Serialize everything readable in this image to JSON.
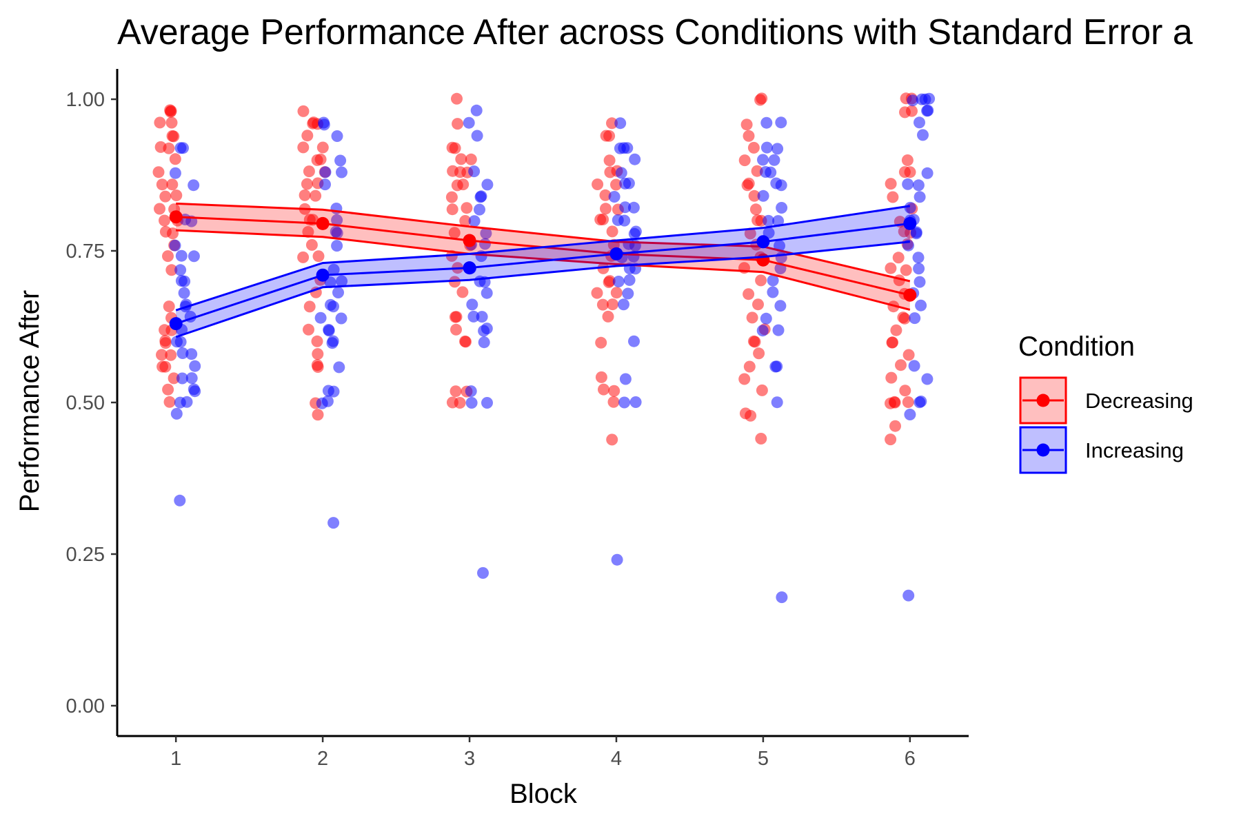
{
  "chart_data": {
    "type": "line",
    "title": "Average Performance After across Conditions with Standard Error a",
    "xlabel": "Block",
    "ylabel": "Performance After",
    "xlim": [
      0.6,
      6.4
    ],
    "ylim": [
      -0.05,
      1.05
    ],
    "x_ticks": [
      "1",
      "2",
      "3",
      "4",
      "5",
      "6"
    ],
    "y_ticks": [
      "0.00",
      "0.25",
      "0.50",
      "0.75",
      "1.00"
    ],
    "y_tick_values": [
      0,
      0.25,
      0.5,
      0.75,
      1.0
    ],
    "grid": false,
    "legend": {
      "title": "Condition",
      "position": "right"
    },
    "series": [
      {
        "name": "Decreasing",
        "color": "#FF0000",
        "fill": "#FFBFBF",
        "x": [
          1,
          2,
          3,
          4,
          5,
          6
        ],
        "mean": [
          0.806,
          0.795,
          0.767,
          0.745,
          0.735,
          0.677
        ],
        "se_low": [
          0.784,
          0.773,
          0.745,
          0.728,
          0.715,
          0.653
        ],
        "se_high": [
          0.828,
          0.818,
          0.79,
          0.765,
          0.757,
          0.7
        ],
        "jitter_points": [
          [
            1,
            [
              0.98,
              0.98,
              0.98,
              0.96,
              0.96,
              0.94,
              0.94,
              0.92,
              0.92,
              0.9,
              0.88,
              0.86,
              0.86,
              0.84,
              0.84,
              0.82,
              0.82,
              0.8,
              0.8,
              0.78,
              0.78,
              0.76,
              0.74,
              0.72,
              0.66,
              0.64,
              0.62,
              0.62,
              0.6,
              0.6,
              0.58,
              0.58,
              0.56,
              0.56,
              0.54,
              0.52,
              0.5
            ]
          ],
          [
            2,
            [
              0.98,
              0.96,
              0.96,
              0.96,
              0.94,
              0.92,
              0.92,
              0.9,
              0.9,
              0.88,
              0.88,
              0.86,
              0.86,
              0.84,
              0.84,
              0.82,
              0.8,
              0.8,
              0.78,
              0.76,
              0.74,
              0.74,
              0.7,
              0.68,
              0.66,
              0.62,
              0.6,
              0.58,
              0.56,
              0.56,
              0.5,
              0.48
            ]
          ],
          [
            3,
            [
              1.0,
              0.96,
              0.92,
              0.92,
              0.9,
              0.9,
              0.88,
              0.88,
              0.88,
              0.86,
              0.86,
              0.84,
              0.82,
              0.82,
              0.8,
              0.78,
              0.76,
              0.74,
              0.72,
              0.7,
              0.68,
              0.64,
              0.64,
              0.62,
              0.6,
              0.6,
              0.52,
              0.52,
              0.5,
              0.5
            ]
          ],
          [
            4,
            [
              0.96,
              0.94,
              0.94,
              0.9,
              0.88,
              0.88,
              0.86,
              0.86,
              0.84,
              0.82,
              0.82,
              0.8,
              0.8,
              0.78,
              0.76,
              0.74,
              0.72,
              0.7,
              0.7,
              0.68,
              0.68,
              0.66,
              0.66,
              0.64,
              0.6,
              0.54,
              0.52,
              0.52,
              0.5,
              0.44
            ]
          ],
          [
            5,
            [
              1.0,
              1.0,
              0.96,
              0.94,
              0.92,
              0.9,
              0.88,
              0.86,
              0.86,
              0.84,
              0.82,
              0.8,
              0.8,
              0.78,
              0.76,
              0.74,
              0.72,
              0.7,
              0.68,
              0.66,
              0.64,
              0.62,
              0.6,
              0.6,
              0.58,
              0.56,
              0.54,
              0.52,
              0.48,
              0.48,
              0.44
            ]
          ],
          [
            6,
            [
              1.0,
              1.0,
              0.98,
              0.98,
              0.9,
              0.88,
              0.88,
              0.86,
              0.84,
              0.82,
              0.8,
              0.78,
              0.78,
              0.76,
              0.74,
              0.72,
              0.72,
              0.7,
              0.68,
              0.66,
              0.64,
              0.64,
              0.62,
              0.6,
              0.6,
              0.58,
              0.56,
              0.54,
              0.52,
              0.5,
              0.5,
              0.5,
              0.5,
              0.46,
              0.44
            ]
          ]
        ]
      },
      {
        "name": "Increasing",
        "color": "#0000FF",
        "fill": "#BFBFFF",
        "x": [
          1,
          2,
          3,
          4,
          5,
          6
        ],
        "mean": [
          0.63,
          0.71,
          0.722,
          0.745,
          0.765,
          0.795
        ],
        "se_low": [
          0.608,
          0.69,
          0.702,
          0.725,
          0.74,
          0.765
        ],
        "se_high": [
          0.652,
          0.73,
          0.745,
          0.767,
          0.788,
          0.824
        ],
        "jitter_points": [
          [
            1,
            [
              0.92,
              0.92,
              0.88,
              0.86,
              0.8,
              0.8,
              0.76,
              0.74,
              0.74,
              0.72,
              0.7,
              0.7,
              0.68,
              0.66,
              0.66,
              0.64,
              0.62,
              0.6,
              0.6,
              0.58,
              0.58,
              0.56,
              0.54,
              0.54,
              0.52,
              0.52,
              0.5,
              0.5,
              0.48,
              0.34
            ]
          ],
          [
            2,
            [
              0.96,
              0.96,
              0.94,
              0.9,
              0.88,
              0.88,
              0.86,
              0.82,
              0.8,
              0.78,
              0.78,
              0.76,
              0.72,
              0.7,
              0.7,
              0.68,
              0.66,
              0.66,
              0.64,
              0.64,
              0.62,
              0.62,
              0.6,
              0.6,
              0.56,
              0.52,
              0.52,
              0.5,
              0.5,
              0.3
            ]
          ],
          [
            3,
            [
              0.98,
              0.96,
              0.94,
              0.88,
              0.86,
              0.84,
              0.84,
              0.82,
              0.8,
              0.78,
              0.76,
              0.76,
              0.74,
              0.72,
              0.72,
              0.7,
              0.7,
              0.68,
              0.66,
              0.64,
              0.64,
              0.62,
              0.62,
              0.6,
              0.52,
              0.5,
              0.5,
              0.22
            ]
          ],
          [
            4,
            [
              0.96,
              0.92,
              0.92,
              0.92,
              0.9,
              0.88,
              0.86,
              0.86,
              0.84,
              0.82,
              0.82,
              0.8,
              0.8,
              0.78,
              0.78,
              0.76,
              0.76,
              0.74,
              0.74,
              0.72,
              0.72,
              0.7,
              0.7,
              0.68,
              0.66,
              0.6,
              0.54,
              0.5,
              0.5,
              0.24
            ]
          ],
          [
            5,
            [
              0.96,
              0.96,
              0.92,
              0.92,
              0.9,
              0.9,
              0.88,
              0.88,
              0.86,
              0.86,
              0.84,
              0.82,
              0.8,
              0.8,
              0.78,
              0.76,
              0.74,
              0.72,
              0.7,
              0.68,
              0.66,
              0.64,
              0.62,
              0.62,
              0.56,
              0.56,
              0.5,
              0.18
            ]
          ],
          [
            6,
            [
              1.0,
              1.0,
              1.0,
              1.0,
              0.98,
              0.98,
              0.96,
              0.94,
              0.88,
              0.86,
              0.86,
              0.84,
              0.82,
              0.8,
              0.8,
              0.78,
              0.78,
              0.76,
              0.74,
              0.72,
              0.7,
              0.68,
              0.66,
              0.64,
              0.56,
              0.54,
              0.5,
              0.5,
              0.48,
              0.18
            ]
          ]
        ]
      }
    ]
  }
}
